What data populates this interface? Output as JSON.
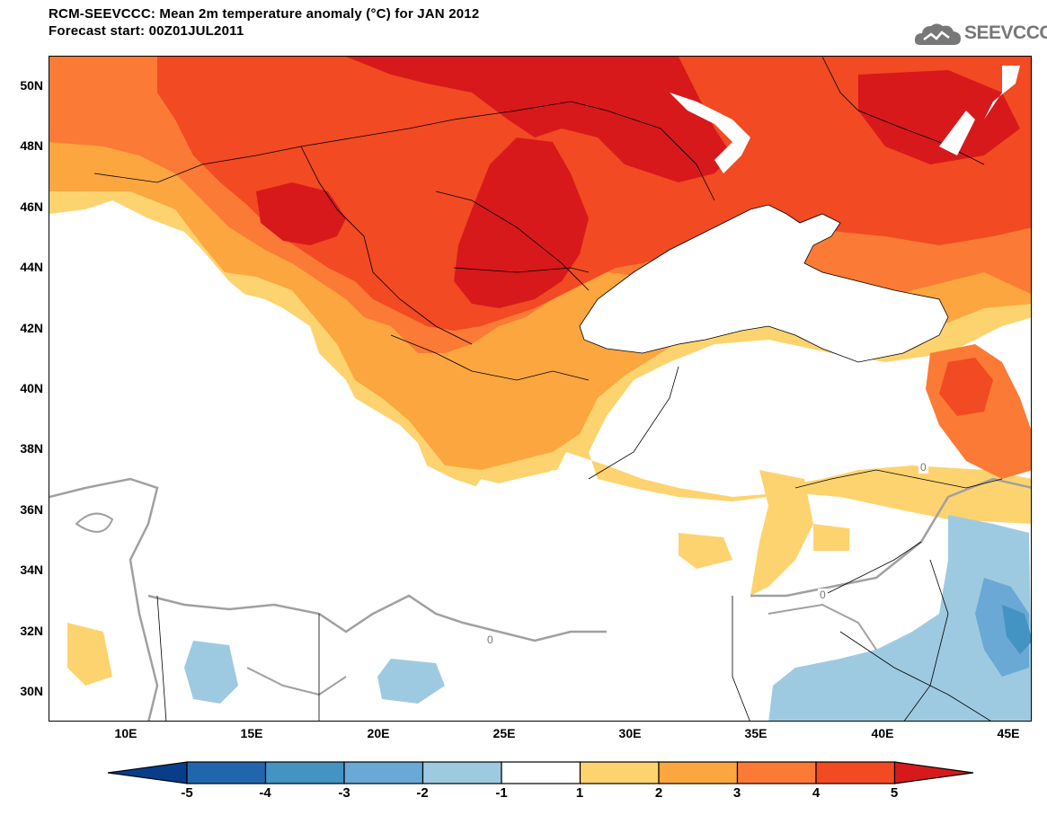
{
  "header": {
    "title_line1": "RCM-SEEVCCC: Mean 2m temperature anomaly (°C) for JAN 2012",
    "title_line2": "Forecast start: 00Z01JUL2011"
  },
  "logo": {
    "text": "SEEVCCC",
    "icon": "cloud-icon"
  },
  "map": {
    "lat_labels": [
      "50N",
      "48N",
      "46N",
      "44N",
      "42N",
      "40N",
      "38N",
      "36N",
      "34N",
      "32N",
      "30N"
    ],
    "lon_labels": [
      "10E",
      "15E",
      "20E",
      "25E",
      "30E",
      "35E",
      "40E",
      "45E"
    ],
    "contour_label": "0"
  },
  "colorbar": {
    "labels": [
      "-5",
      "-4",
      "-3",
      "-2",
      "-1",
      "1",
      "2",
      "3",
      "4",
      "5"
    ],
    "colors": [
      "#083d8a",
      "#2166ac",
      "#4393c3",
      "#6aa8d6",
      "#9ecae1",
      "#ffffff",
      "#fdd36f",
      "#fca63f",
      "#fb7a35",
      "#f24a22",
      "#d7191c"
    ]
  }
}
